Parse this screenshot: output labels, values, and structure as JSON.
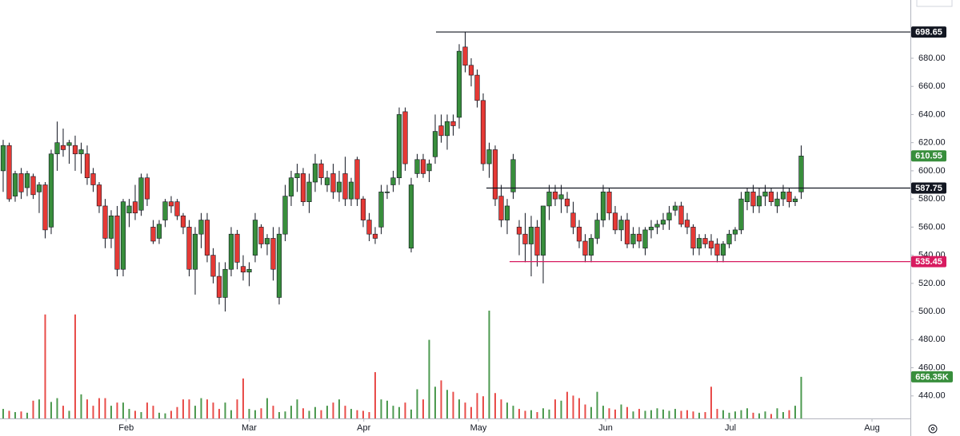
{
  "chart_data": {
    "type": "candlestick",
    "up_color": "#388e3c",
    "down_color": "#e53935",
    "ylim": [
      424,
      721.4
    ],
    "vlim": [
      0,
      6600000
    ],
    "xlim": [
      -0.53,
      151.2
    ],
    "yticks": [
      {
        "value": 440,
        "label": "440.00"
      },
      {
        "value": 460,
        "label": "460.00"
      },
      {
        "value": 480,
        "label": "480.00"
      },
      {
        "value": 500,
        "label": "500.00"
      },
      {
        "value": 520,
        "label": "520.00"
      },
      {
        "value": 540,
        "label": "540.00"
      },
      {
        "value": 560,
        "label": "560.00"
      },
      {
        "value": 580,
        "label": "580.00"
      },
      {
        "value": 600,
        "label": "600.00"
      },
      {
        "value": 620,
        "label": "620.00"
      },
      {
        "value": 640,
        "label": "640.00"
      },
      {
        "value": 660,
        "label": "660.00"
      },
      {
        "value": 680,
        "label": "680.00"
      }
    ],
    "xticks": [
      {
        "value": 20.5,
        "label": "Feb"
      },
      {
        "value": 41,
        "label": "Mar"
      },
      {
        "value": 60.1,
        "label": "Apr"
      },
      {
        "value": 79.2,
        "label": "May"
      },
      {
        "value": 100.4,
        "label": "Jun"
      },
      {
        "value": 121.2,
        "label": "Jul"
      },
      {
        "value": 144.8,
        "label": "Aug"
      }
    ],
    "levels": [
      {
        "value": 698.65,
        "label": "698.65",
        "color": "#131722"
      },
      {
        "value": 587.75,
        "label": "587.75",
        "color": "#131722"
      },
      {
        "value": 535.45,
        "label": "535.45",
        "color": "#d81b60"
      }
    ],
    "last_price": {
      "value": 610.55,
      "label": "610.55",
      "color": "#388e3c"
    },
    "last_volume": {
      "value": 656350,
      "label": "656.35K",
      "color": "#388e3c"
    },
    "candles": [
      [
        600,
        622,
        585,
        618
      ],
      [
        618,
        620,
        578,
        580
      ],
      [
        582,
        600,
        578,
        598
      ],
      [
        598,
        602,
        580,
        585
      ],
      [
        588,
        600,
        582,
        598
      ],
      [
        596,
        598,
        580,
        583
      ],
      [
        585,
        592,
        570,
        590
      ],
      [
        590,
        592,
        552,
        558
      ],
      [
        560,
        615,
        555,
        612
      ],
      [
        612,
        635,
        600,
        620
      ],
      [
        618,
        630,
        610,
        615
      ],
      [
        618,
        622,
        605,
        620
      ],
      [
        618,
        625,
        600,
        612
      ],
      [
        612,
        620,
        598,
        615
      ],
      [
        612,
        618,
        590,
        595
      ],
      [
        598,
        602,
        585,
        590
      ],
      [
        590,
        592,
        570,
        575
      ],
      [
        575,
        580,
        545,
        552
      ],
      [
        552,
        572,
        545,
        568
      ],
      [
        568,
        575,
        525,
        530
      ],
      [
        530,
        580,
        525,
        578
      ],
      [
        570,
        580,
        560,
        575
      ],
      [
        578,
        590,
        565,
        570
      ],
      [
        572,
        598,
        568,
        595
      ],
      [
        595,
        598,
        575,
        580
      ],
      [
        560,
        565,
        548,
        550
      ],
      [
        552,
        565,
        548,
        562
      ],
      [
        565,
        580,
        560,
        578
      ],
      [
        578,
        582,
        570,
        575
      ],
      [
        578,
        580,
        565,
        568
      ],
      [
        568,
        570,
        555,
        560
      ],
      [
        560,
        565,
        525,
        530
      ],
      [
        530,
        560,
        512,
        555
      ],
      [
        555,
        570,
        545,
        565
      ],
      [
        565,
        570,
        535,
        540
      ],
      [
        540,
        545,
        520,
        525
      ],
      [
        525,
        535,
        505,
        510
      ],
      [
        510,
        535,
        500,
        530
      ],
      [
        530,
        560,
        525,
        555
      ],
      [
        555,
        558,
        530,
        535
      ],
      [
        532,
        540,
        522,
        528
      ],
      [
        528,
        535,
        518,
        530
      ],
      [
        540,
        570,
        535,
        565
      ],
      [
        560,
        562,
        545,
        548
      ],
      [
        548,
        555,
        540,
        552
      ],
      [
        552,
        560,
        522,
        530
      ],
      [
        510,
        560,
        505,
        555
      ],
      [
        555,
        590,
        550,
        582
      ],
      [
        582,
        600,
        575,
        595
      ],
      [
        595,
        605,
        585,
        598
      ],
      [
        598,
        602,
        575,
        578
      ],
      [
        578,
        598,
        570,
        592
      ],
      [
        592,
        612,
        585,
        605
      ],
      [
        605,
        608,
        590,
        595
      ],
      [
        590,
        600,
        585,
        595
      ],
      [
        598,
        605,
        580,
        585
      ],
      [
        585,
        600,
        578,
        592
      ],
      [
        598,
        610,
        575,
        580
      ],
      [
        580,
        595,
        575,
        592
      ],
      [
        608,
        610,
        575,
        580
      ],
      [
        580,
        582,
        560,
        565
      ],
      [
        565,
        570,
        550,
        555
      ],
      [
        555,
        560,
        548,
        552
      ],
      [
        560,
        590,
        555,
        585
      ],
      [
        585,
        590,
        580,
        585
      ],
      [
        590,
        600,
        585,
        595
      ],
      [
        595,
        645,
        590,
        640
      ],
      [
        642,
        645,
        600,
        605
      ],
      [
        545,
        595,
        542,
        590
      ],
      [
        598,
        612,
        595,
        608
      ],
      [
        608,
        612,
        595,
        598
      ],
      [
        600,
        608,
        592,
        605
      ],
      [
        610,
        640,
        605,
        628
      ],
      [
        632,
        640,
        620,
        625
      ],
      [
        625,
        640,
        615,
        635
      ],
      [
        635,
        640,
        625,
        632
      ],
      [
        638,
        690,
        630,
        685
      ],
      [
        688,
        698.65,
        670,
        675
      ],
      [
        675,
        680,
        660,
        668
      ],
      [
        668,
        672,
        645,
        650
      ],
      [
        650,
        655,
        600,
        605
      ],
      [
        605,
        620,
        595,
        615
      ],
      [
        615,
        618,
        575,
        580
      ],
      [
        582,
        590,
        560,
        565
      ],
      [
        565,
        580,
        555,
        575
      ],
      [
        585,
        612,
        580,
        608
      ],
      [
        560,
        565,
        540,
        555
      ],
      [
        555,
        570,
        535,
        548
      ],
      [
        548,
        568,
        525,
        560
      ],
      [
        560,
        565,
        532,
        540
      ],
      [
        540,
        575,
        520,
        575
      ],
      [
        575,
        590,
        565,
        585
      ],
      [
        585,
        590,
        575,
        580
      ],
      [
        580,
        590,
        570,
        583
      ],
      [
        580,
        585,
        570,
        575
      ],
      [
        570,
        578,
        555,
        560
      ],
      [
        560,
        565,
        545,
        550
      ],
      [
        550,
        555,
        535,
        540
      ],
      [
        540,
        555,
        535,
        552
      ],
      [
        552,
        570,
        548,
        565
      ],
      [
        565,
        590,
        560,
        585
      ],
      [
        585,
        588,
        565,
        570
      ],
      [
        570,
        575,
        555,
        558
      ],
      [
        558,
        568,
        550,
        565
      ],
      [
        565,
        570,
        545,
        548
      ],
      [
        548,
        560,
        545,
        555
      ],
      [
        555,
        560,
        545,
        550
      ],
      [
        545,
        560,
        540,
        558
      ],
      [
        558,
        565,
        552,
        560
      ],
      [
        560,
        565,
        555,
        562
      ],
      [
        562,
        570,
        558,
        565
      ],
      [
        565,
        575,
        558,
        570
      ],
      [
        572,
        578,
        568,
        575
      ],
      [
        575,
        578,
        560,
        562
      ],
      [
        565,
        570,
        555,
        560
      ],
      [
        560,
        562,
        540,
        545
      ],
      [
        545,
        555,
        540,
        552
      ],
      [
        552,
        555,
        545,
        548
      ],
      [
        550,
        555,
        540,
        545
      ],
      [
        548,
        552,
        535,
        540
      ],
      [
        540,
        550,
        535,
        548
      ],
      [
        548,
        558,
        545,
        555
      ],
      [
        555,
        560,
        550,
        558
      ],
      [
        558,
        585,
        555,
        580
      ],
      [
        578,
        588,
        572,
        585
      ],
      [
        585,
        590,
        570,
        575
      ],
      [
        575,
        588,
        570,
        582
      ],
      [
        582,
        590,
        575,
        585
      ],
      [
        585,
        588,
        575,
        578
      ],
      [
        575,
        585,
        570,
        580
      ],
      [
        580,
        590,
        575,
        585
      ],
      [
        585,
        588,
        574,
        578
      ],
      [
        578,
        582,
        575,
        580
      ],
      [
        585,
        618,
        580,
        610.55
      ]
    ],
    "volumes": [
      150000,
      120000,
      100000,
      110000,
      90000,
      280000,
      300000,
      1640000,
      260000,
      320000,
      200000,
      120000,
      1640000,
      380000,
      300000,
      200000,
      320000,
      320000,
      200000,
      250000,
      250000,
      150000,
      120000,
      100000,
      250000,
      200000,
      90000,
      80000,
      120000,
      180000,
      300000,
      300000,
      200000,
      320000,
      300000,
      250000,
      150000,
      250000,
      130000,
      300000,
      630000,
      150000,
      130000,
      160000,
      320000,
      200000,
      100000,
      110000,
      200000,
      300000,
      160000,
      120000,
      180000,
      130000,
      200000,
      250000,
      300000,
      200000,
      150000,
      130000,
      120000,
      100000,
      730000,
      300000,
      280000,
      200000,
      180000,
      250000,
      140000,
      460000,
      300000,
      1240000,
      500000,
      600000,
      450000,
      420000,
      300000,
      250000,
      180000,
      400000,
      350000,
      1700000,
      400000,
      300000,
      250000,
      200000,
      150000,
      120000,
      130000,
      100000,
      160000,
      140000,
      300000,
      280000,
      420000,
      360000,
      320000,
      220000,
      180000,
      420000,
      200000,
      160000,
      140000,
      220000,
      180000,
      110000,
      150000,
      120000,
      130000,
      160000,
      140000,
      120000,
      150000,
      120000,
      130000,
      110000,
      90000,
      100000,
      500000,
      150000,
      130000,
      90000,
      110000,
      130000,
      160000,
      90000,
      80000,
      110000,
      70000,
      160000,
      100000,
      130000,
      200000,
      656350
    ]
  }
}
